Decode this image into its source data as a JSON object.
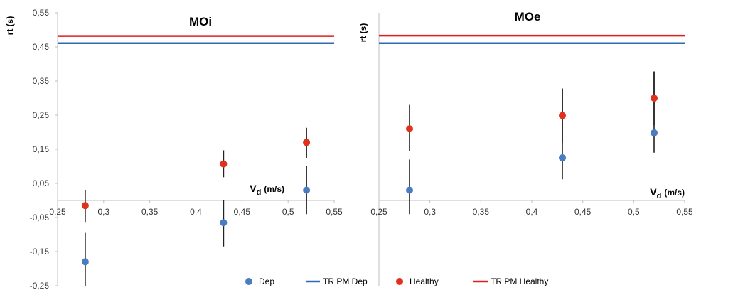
{
  "colors": {
    "dep": "#4a7cc0",
    "healthy": "#e0301e",
    "tr_dep": "#2f6bb0",
    "tr_healthy": "#e02020",
    "errorbar": "#222222",
    "axis": "#bfbfbf"
  },
  "legend": {
    "position": "bottom",
    "items": [
      {
        "label": "Dep",
        "kind": "marker",
        "color": "#4a7cc0"
      },
      {
        "label": "TR PM Dep",
        "kind": "line",
        "color": "#2f6bb0"
      },
      {
        "label": "Healthy",
        "kind": "marker",
        "color": "#e0301e"
      },
      {
        "label": "TR PM Healthy",
        "kind": "line",
        "color": "#e02020"
      }
    ]
  },
  "chart_data": [
    {
      "type": "scatter",
      "title": "MOi",
      "ylabel": "rt (s)",
      "xlabel_main": "V",
      "xlabel_sub": "d",
      "xlabel_unit": "(m/s)",
      "xlim": [
        0.25,
        0.55
      ],
      "ylim": [
        -0.25,
        0.55
      ],
      "xticks": [
        "0,25",
        "0,3",
        "0,35",
        "0,4",
        "0,45",
        "0,5",
        "0,55"
      ],
      "xtick_values": [
        0.25,
        0.3,
        0.35,
        0.4,
        0.45,
        0.5,
        0.55
      ],
      "yticks": [
        "0,55",
        "0,45",
        "0,35",
        "0,25",
        "0,15",
        "0,05",
        "-0,05",
        "-0,15",
        "-0,25"
      ],
      "ytick_values": [
        0.55,
        0.45,
        0.35,
        0.25,
        0.15,
        0.05,
        -0.05,
        -0.15,
        -0.25
      ],
      "grid": false,
      "series": [
        {
          "name": "Dep",
          "color": "#4a7cc0",
          "x": [
            0.28,
            0.43,
            0.52
          ],
          "y": [
            -0.18,
            -0.065,
            0.03
          ],
          "err_low": [
            -0.25,
            -0.135,
            -0.04
          ],
          "err_high": [
            -0.095,
            0.0,
            0.1
          ]
        },
        {
          "name": "Healthy",
          "color": "#e0301e",
          "x": [
            0.28,
            0.43,
            0.52
          ],
          "y": [
            -0.015,
            0.107,
            0.17
          ],
          "err_low": [
            -0.065,
            0.068,
            0.125
          ],
          "err_high": [
            0.03,
            0.147,
            0.213
          ]
        }
      ],
      "hlines": [
        {
          "name": "TR PM Dep",
          "y": 0.461,
          "color": "#2f6bb0"
        },
        {
          "name": "TR PM Healthy",
          "y": 0.482,
          "color": "#e02020"
        }
      ]
    },
    {
      "type": "scatter",
      "title": "MOe",
      "ylabel": "rt (s)",
      "xlabel_main": "V",
      "xlabel_sub": "d",
      "xlabel_unit": "(m/s)",
      "xlim": [
        0.25,
        0.55
      ],
      "ylim": [
        -0.25,
        0.55
      ],
      "xticks": [
        "0,25",
        "0,3",
        "0,35",
        "0,4",
        "0,45",
        "0,5",
        "0,55"
      ],
      "xtick_values": [
        0.25,
        0.3,
        0.35,
        0.4,
        0.45,
        0.5,
        0.55
      ],
      "grid": false,
      "series": [
        {
          "name": "Dep",
          "color": "#4a7cc0",
          "x": [
            0.28,
            0.43,
            0.52
          ],
          "y": [
            0.03,
            0.125,
            0.198
          ],
          "err_low": [
            -0.04,
            0.062,
            0.14
          ],
          "err_high": [
            0.12,
            0.328,
            0.378
          ]
        },
        {
          "name": "Healthy",
          "color": "#e0301e",
          "x": [
            0.28,
            0.43,
            0.52
          ],
          "y": [
            0.21,
            0.249,
            0.3
          ],
          "err_low": [
            0.145,
            0.17,
            0.22
          ],
          "err_high": [
            0.28,
            0.328,
            0.378
          ]
        }
      ],
      "hlines": [
        {
          "name": "TR PM Dep",
          "y": 0.461,
          "color": "#2f6bb0"
        },
        {
          "name": "TR PM Healthy",
          "y": 0.483,
          "color": "#e02020"
        }
      ]
    }
  ]
}
